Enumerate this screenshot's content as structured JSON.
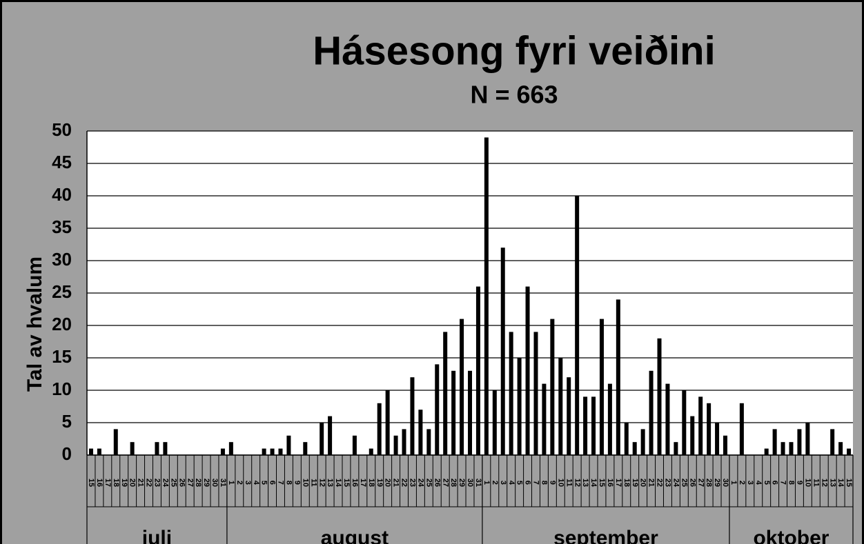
{
  "chart_data": {
    "type": "bar",
    "title": "Hásesong fyri veiðini",
    "subtitle": "N = 663",
    "y_label": "Tal av hvalum",
    "month_labels": [
      "juli",
      "august",
      "september",
      "oktober"
    ],
    "categories": [
      "15",
      "16",
      "17",
      "18",
      "19",
      "20",
      "21",
      "22",
      "23",
      "24",
      "25",
      "26",
      "27",
      "28",
      "29",
      "30",
      "31",
      "1",
      "2",
      "3",
      "4",
      "5",
      "6",
      "7",
      "8",
      "9",
      "10",
      "11",
      "12",
      "13",
      "14",
      "15",
      "16",
      "17",
      "18",
      "19",
      "20",
      "21",
      "22",
      "23",
      "24",
      "25",
      "26",
      "27",
      "28",
      "29",
      "30",
      "31",
      "1",
      "2",
      "3",
      "4",
      "5",
      "6",
      "7",
      "8",
      "9",
      "10",
      "11",
      "12",
      "13",
      "14",
      "15",
      "16",
      "17",
      "18",
      "19",
      "20",
      "21",
      "22",
      "23",
      "24",
      "25",
      "26",
      "27",
      "28",
      "29",
      "30",
      "1",
      "2",
      "3",
      "4",
      "5",
      "6",
      "7",
      "8",
      "9",
      "10",
      "11",
      "12",
      "13",
      "14",
      "15"
    ],
    "values": [
      1,
      1,
      0,
      4,
      0,
      2,
      0,
      0,
      2,
      2,
      0,
      0,
      0,
      0,
      0,
      0,
      1,
      2,
      0,
      0,
      0,
      1,
      1,
      1,
      3,
      0,
      2,
      0,
      5,
      6,
      0,
      0,
      3,
      0,
      1,
      8,
      10,
      3,
      4,
      12,
      7,
      4,
      14,
      19,
      13,
      21,
      13,
      26,
      49,
      10,
      32,
      19,
      15,
      26,
      19,
      11,
      21,
      15,
      12,
      40,
      9,
      9,
      21,
      11,
      24,
      5,
      2,
      4,
      13,
      18,
      11,
      2,
      10,
      6,
      9,
      8,
      5,
      3,
      0,
      8,
      0,
      0,
      1,
      4,
      2,
      2,
      4,
      5,
      0,
      0,
      4,
      2,
      1
    ],
    "color": "#000000",
    "ylim": [
      0,
      50
    ],
    "yticks": [
      0,
      5,
      10,
      15,
      20,
      25,
      30,
      35,
      40,
      45,
      50
    ],
    "grid": true
  }
}
